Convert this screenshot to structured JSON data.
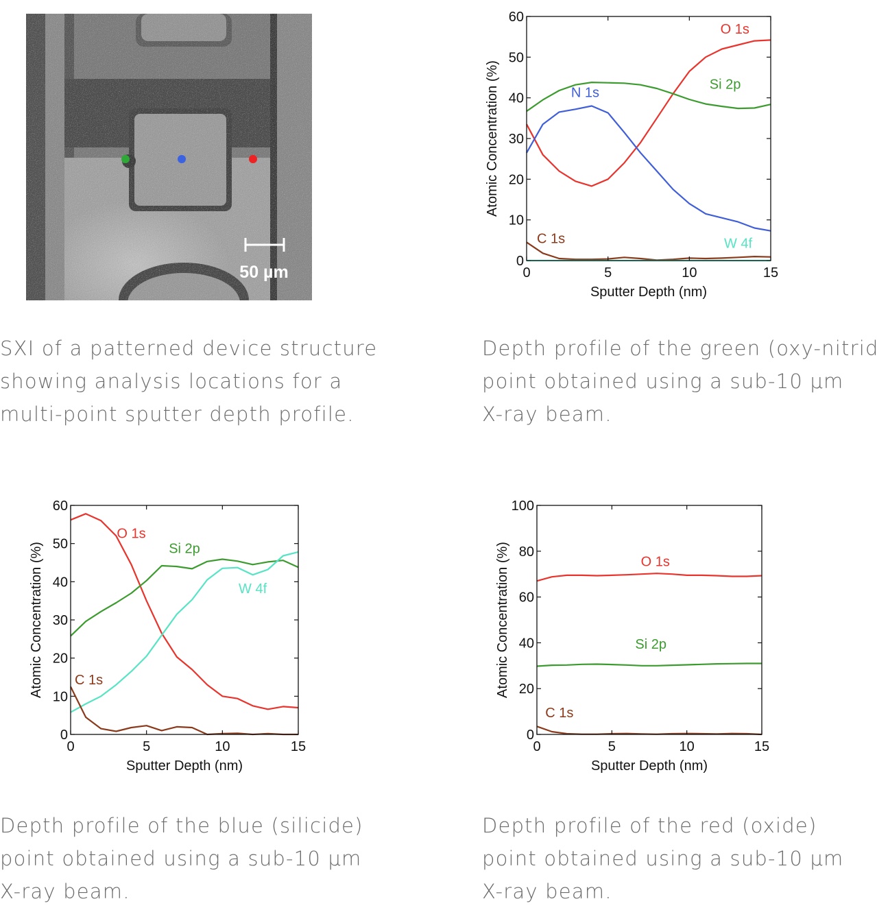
{
  "image": {
    "scale_label": "50 µm",
    "markers": [
      {
        "color": "#2ea836"
      },
      {
        "color": "#3b62e0"
      },
      {
        "color": "#ee2222"
      }
    ]
  },
  "captions": {
    "sxi": [
      "SXI of a patterned device structure",
      "showing analysis locations for a",
      "multi-point sputter depth profile."
    ],
    "green": [
      "Depth profile of the green (oxy-nitride)",
      "point obtained using a sub-10 µm",
      "X-ray beam."
    ],
    "blue": [
      "Depth profile of the blue (silicide)",
      "point obtained using a sub-10 µm",
      "X-ray beam."
    ],
    "red": [
      "Depth profile of the red (oxide)",
      "point obtained using a sub-10 µm",
      "X-ray beam."
    ]
  },
  "chart_data": [
    {
      "type": "line",
      "xlabel": "Sputter Depth (nm)",
      "ylabel": "Atomic Concentration (%)",
      "xlim": [
        0,
        15
      ],
      "ylim": [
        0,
        60
      ],
      "xticks": [
        "0",
        "5",
        "10",
        "15"
      ],
      "yticks": [
        "0",
        "10",
        "20",
        "30",
        "40",
        "50",
        "60"
      ],
      "grid": false,
      "series": [
        {
          "name": "O 1s",
          "color": "#e8342c",
          "x": [
            0,
            1,
            2,
            3,
            4,
            5,
            6,
            7,
            8,
            9,
            10,
            11,
            12,
            13,
            14,
            15
          ],
          "y": [
            33.5,
            26,
            22,
            19.5,
            18.3,
            20,
            24,
            29,
            35,
            41,
            46.5,
            50,
            52,
            53,
            54,
            54.2
          ]
        },
        {
          "name": "Si 2p",
          "color": "#3c9b2f",
          "x": [
            0,
            1,
            2,
            3,
            4,
            5,
            6,
            7,
            8,
            9,
            10,
            11,
            12,
            13,
            14,
            15
          ],
          "y": [
            36.7,
            39.5,
            41.8,
            43.2,
            43.8,
            43.7,
            43.6,
            43.2,
            42.3,
            41,
            39.6,
            38.5,
            37.9,
            37.4,
            37.5,
            38.4
          ]
        },
        {
          "name": "N 1s",
          "color": "#3f5ed8",
          "x": [
            0,
            1,
            2,
            3,
            4,
            5,
            6,
            7,
            8,
            9,
            10,
            11,
            12,
            13,
            14,
            15
          ],
          "y": [
            26.5,
            33.5,
            36.5,
            37.2,
            38,
            36.3,
            31.5,
            26.5,
            22,
            17.5,
            14,
            11.5,
            10.5,
            9.5,
            8,
            7.3
          ]
        },
        {
          "name": "C 1s",
          "color": "#8a3a1a",
          "x": [
            0,
            1,
            2,
            3,
            4,
            5,
            6,
            7,
            8,
            9,
            10,
            11,
            12,
            13,
            14,
            15
          ],
          "y": [
            4.5,
            1.8,
            0.5,
            0.3,
            0.3,
            0.4,
            0.8,
            0.5,
            0.1,
            0.3,
            0.6,
            0.5,
            0.6,
            0.8,
            1,
            0.9
          ]
        },
        {
          "name": "W 4f",
          "color": "#56e4c4",
          "x": [
            0,
            15
          ],
          "y": [
            0,
            0
          ]
        }
      ]
    },
    {
      "type": "line",
      "xlabel": "Sputter Depth (nm)",
      "ylabel": "Atomic Concentration (%)",
      "xlim": [
        0,
        15
      ],
      "ylim": [
        0,
        60
      ],
      "xticks": [
        "0",
        "5",
        "10",
        "15"
      ],
      "yticks": [
        "0",
        "10",
        "20",
        "30",
        "40",
        "50",
        "60"
      ],
      "grid": false,
      "series": [
        {
          "name": "O 1s",
          "color": "#e8342c",
          "x": [
            0,
            1,
            2,
            3,
            4,
            5,
            6,
            7,
            8,
            9,
            10,
            11,
            12,
            13,
            14,
            15
          ],
          "y": [
            56.2,
            57.8,
            56,
            52,
            44.5,
            35,
            26.5,
            20.3,
            17,
            13,
            10,
            9.4,
            7.5,
            6.6,
            7.3,
            7
          ]
        },
        {
          "name": "Si 2p",
          "color": "#3c9b2f",
          "x": [
            0,
            1,
            2,
            3,
            4,
            5,
            6,
            7,
            8,
            9,
            10,
            11,
            12,
            13,
            14,
            15
          ],
          "y": [
            25.8,
            29.6,
            32.2,
            34.5,
            37,
            40.3,
            44.2,
            44,
            43.4,
            45.3,
            45.9,
            45.4,
            44.5,
            45.2,
            45.6,
            43.8
          ]
        },
        {
          "name": "W 4f",
          "color": "#56e4c4",
          "x": [
            0,
            1,
            2,
            3,
            4,
            5,
            6,
            7,
            8,
            9,
            10,
            11,
            12,
            13,
            14,
            15
          ],
          "y": [
            5.8,
            8,
            10,
            13,
            16.5,
            20.5,
            26,
            31.5,
            35.3,
            40.5,
            43.5,
            43.7,
            41.8,
            43.2,
            46.8,
            47.8
          ]
        },
        {
          "name": "C 1s",
          "color": "#8a3a1a",
          "x": [
            0,
            1,
            2,
            3,
            4,
            5,
            6,
            7,
            8,
            9,
            10,
            11,
            12,
            13,
            14,
            15
          ],
          "y": [
            12.5,
            4.5,
            1.5,
            0.8,
            1.8,
            2.3,
            1,
            2,
            1.8,
            0,
            0.2,
            0.3,
            0,
            0.2,
            0,
            0
          ]
        }
      ]
    },
    {
      "type": "line",
      "xlabel": "Sputter Depth (nm)",
      "ylabel": "Atomic Concentration (%)",
      "xlim": [
        0,
        15
      ],
      "ylim": [
        0,
        100
      ],
      "xticks": [
        "0",
        "5",
        "10",
        "15"
      ],
      "yticks": [
        "0",
        "20",
        "40",
        "60",
        "80",
        "100"
      ],
      "grid": false,
      "series": [
        {
          "name": "O 1s",
          "color": "#e8342c",
          "x": [
            0,
            1,
            2,
            3,
            4,
            5,
            6,
            7,
            8,
            9,
            10,
            11,
            12,
            13,
            14,
            15
          ],
          "y": [
            67,
            68.8,
            69.5,
            69.5,
            69.3,
            69.5,
            69.7,
            70,
            70.3,
            70,
            69.5,
            69.5,
            69.3,
            69,
            69,
            69.3
          ]
        },
        {
          "name": "Si 2p",
          "color": "#3c9b2f",
          "x": [
            0,
            1,
            2,
            3,
            4,
            5,
            6,
            7,
            8,
            9,
            10,
            11,
            12,
            13,
            14,
            15
          ],
          "y": [
            29.8,
            30.2,
            30.3,
            30.6,
            30.7,
            30.5,
            30.3,
            30,
            30,
            30.2,
            30.4,
            30.6,
            30.8,
            30.9,
            31,
            31
          ]
        },
        {
          "name": "C 1s",
          "color": "#8a3a1a",
          "x": [
            0,
            1,
            2,
            3,
            4,
            5,
            6,
            7,
            8,
            9,
            10,
            11,
            12,
            13,
            14,
            15
          ],
          "y": [
            3.5,
            1.2,
            0.3,
            0.1,
            0.1,
            0.3,
            0.4,
            0.2,
            0.1,
            0.3,
            0.4,
            0.3,
            0.2,
            0.4,
            0.3,
            0
          ]
        }
      ]
    }
  ]
}
